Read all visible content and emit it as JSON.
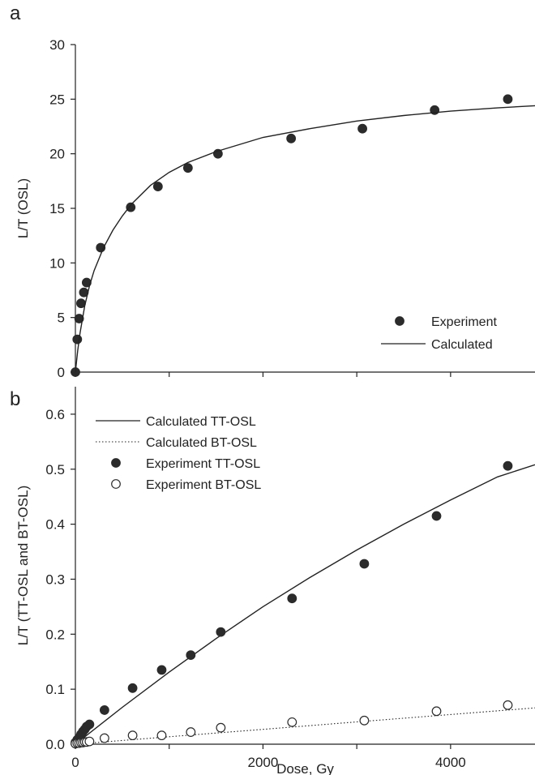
{
  "chart_data": [
    {
      "id": "a",
      "panel_label": "a",
      "type": "scatter",
      "xlabel": "",
      "ylabel": "L/T (OSL)",
      "xlim": [
        0,
        4900
      ],
      "ylim": [
        0,
        30
      ],
      "xticks": [
        0,
        1000,
        2000,
        3000,
        4000
      ],
      "xtick_labels": [
        "",
        "",
        "",
        "",
        ""
      ],
      "yticks": [
        0,
        5,
        10,
        15,
        20,
        25,
        30
      ],
      "ytick_labels": [
        "0",
        "5",
        "10",
        "15",
        "20",
        "25",
        "30"
      ],
      "legend_position": "bottom-right",
      "series": [
        {
          "name": "Experiment",
          "kind": "points",
          "marker": "filled-circle",
          "x": [
            0,
            20,
            40,
            60,
            90,
            120,
            270,
            590,
            880,
            1200,
            1520,
            2300,
            3060,
            3830,
            4610
          ],
          "y": [
            0,
            3.0,
            4.9,
            6.3,
            7.3,
            8.2,
            11.4,
            15.1,
            17.0,
            18.7,
            20.0,
            21.4,
            22.3,
            24.0,
            25.0
          ]
        },
        {
          "name": "Calculated",
          "kind": "line",
          "style": "solid",
          "x": [
            0,
            25,
            50,
            100,
            150,
            200,
            300,
            400,
            500,
            600,
            800,
            1000,
            1200,
            1500,
            2000,
            2500,
            3000,
            3500,
            4000,
            4500,
            4900
          ],
          "y": [
            0,
            2.0,
            3.6,
            6.1,
            7.9,
            9.3,
            11.4,
            13.0,
            14.3,
            15.4,
            17.1,
            18.3,
            19.2,
            20.2,
            21.5,
            22.3,
            23.0,
            23.5,
            23.9,
            24.2,
            24.4
          ]
        }
      ]
    },
    {
      "id": "b",
      "panel_label": "b",
      "type": "scatter",
      "xlabel": "Dose, Gy",
      "ylabel": "L/T  (TT-OSL and BT-OSL)",
      "xlim": [
        0,
        4900
      ],
      "ylim": [
        0,
        0.65
      ],
      "xticks": [
        0,
        1000,
        2000,
        3000,
        4000
      ],
      "xtick_labels": [
        "0",
        "",
        "2000",
        "",
        "4000"
      ],
      "yticks": [
        0,
        0.1,
        0.2,
        0.3,
        0.4,
        0.5,
        0.6
      ],
      "ytick_labels": [
        "0.0",
        "0.1",
        "0.2",
        "0.3",
        "0.4",
        "0.5",
        "0.6"
      ],
      "legend_position": "top-left",
      "series": [
        {
          "name": "Calculated TT-OSL",
          "kind": "line",
          "style": "solid",
          "x": [
            0,
            500,
            1000,
            1500,
            2000,
            2500,
            3000,
            3500,
            4000,
            4500,
            4900
          ],
          "y": [
            0,
            0.067,
            0.131,
            0.192,
            0.25,
            0.303,
            0.353,
            0.4,
            0.444,
            0.486,
            0.508
          ]
        },
        {
          "name": "Calculated BT-OSL",
          "kind": "line",
          "style": "dotted",
          "x": [
            0,
            1000,
            2000,
            3000,
            4000,
            4900
          ],
          "y": [
            0,
            0.0135,
            0.027,
            0.0405,
            0.054,
            0.066
          ]
        },
        {
          "name": "Experiment TT-OSL",
          "kind": "points",
          "marker": "filled-circle",
          "x": [
            0,
            20,
            40,
            60,
            80,
            100,
            120,
            150,
            310,
            610,
            920,
            1230,
            1550,
            2310,
            3080,
            3850,
            4610
          ],
          "y": [
            0.003,
            0.008,
            0.012,
            0.018,
            0.023,
            0.027,
            0.032,
            0.036,
            0.062,
            0.102,
            0.135,
            0.162,
            0.204,
            0.265,
            0.328,
            0.415,
            0.506
          ]
        },
        {
          "name": "Experiment BT-OSL",
          "kind": "points",
          "marker": "open-circle",
          "x": [
            0,
            20,
            40,
            60,
            80,
            100,
            120,
            150,
            310,
            610,
            920,
            1230,
            1550,
            2310,
            3080,
            3850,
            4610
          ],
          "y": [
            0.001,
            0.002,
            0.002,
            0.003,
            0.003,
            0.004,
            0.004,
            0.005,
            0.011,
            0.016,
            0.016,
            0.022,
            0.03,
            0.04,
            0.043,
            0.06,
            0.071
          ]
        }
      ]
    }
  ]
}
